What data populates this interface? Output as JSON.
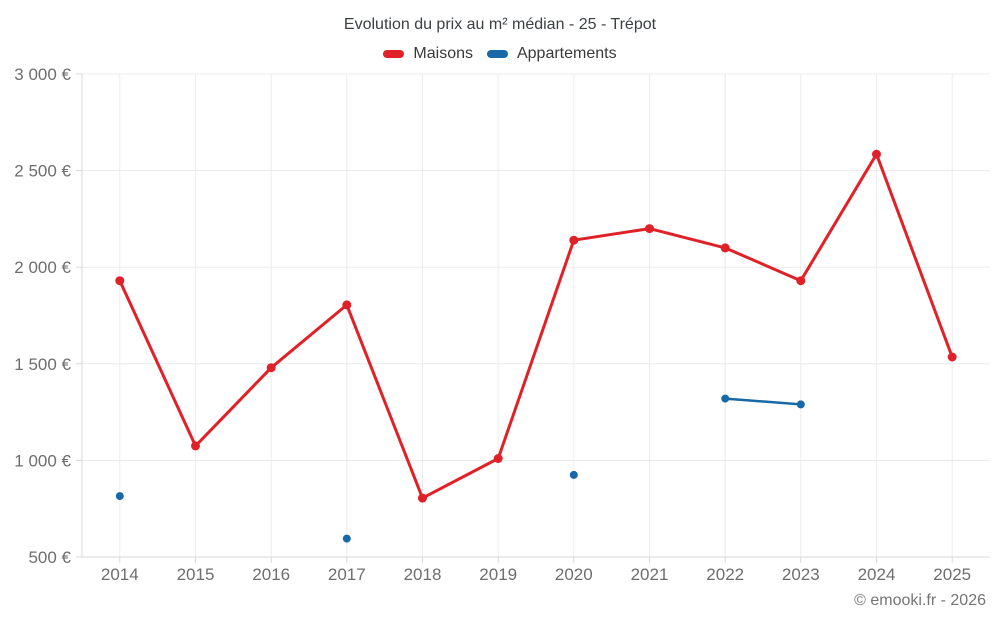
{
  "header": {
    "title": "Evolution du prix au m² médian - 25 - Trépot"
  },
  "footer": {
    "copyright": "© emooki.fr - 2026"
  },
  "colors": {
    "maisons_red": "#e02228",
    "appartements_blue": "#1769a7",
    "grid": "#ececec",
    "axis": "#d9d9d9",
    "tick_text": "#6e6e6e",
    "title_text": "#3c4043",
    "legend_text": "#3a3a3a",
    "footer_text": "#757575"
  },
  "chart_data": {
    "type": "line",
    "title": "Evolution du prix au m² médian - 25 - Trépot",
    "xlabel": "",
    "ylabel": "",
    "currency": "€",
    "categories": [
      2014,
      2015,
      2016,
      2017,
      2018,
      2019,
      2020,
      2021,
      2022,
      2023,
      2024,
      2025
    ],
    "series": [
      {
        "name": "Maisons",
        "color": "#e02228",
        "values": [
          1930,
          1075,
          1480,
          1805,
          805,
          1010,
          2140,
          2200,
          2100,
          1930,
          2585,
          1535
        ]
      },
      {
        "name": "Appartements",
        "color": "#1769a7",
        "values": [
          815,
          null,
          null,
          595,
          null,
          null,
          925,
          null,
          1320,
          1290,
          null,
          null
        ]
      }
    ],
    "ylim": [
      500,
      3000
    ],
    "yticks": [
      500,
      1000,
      1500,
      2000,
      2500,
      3000
    ],
    "ytick_labels": [
      "500 €",
      "1 000 €",
      "1 500 €",
      "2 000 €",
      "2 500 €",
      "3 000 €"
    ],
    "grid": true,
    "legend_position": "top"
  }
}
